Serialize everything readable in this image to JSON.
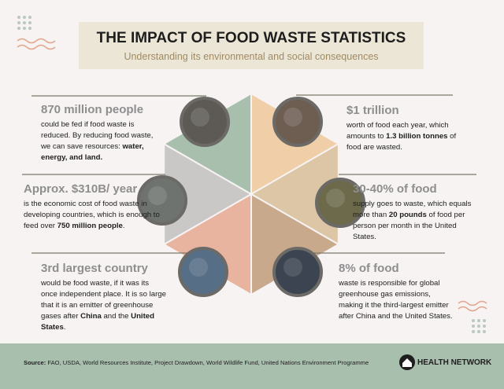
{
  "header": {
    "title": "THE IMPACT OF FOOD WASTE STATISTICS",
    "subtitle": "Understanding its environmental and social consequences"
  },
  "items": [
    {
      "headline": "870 million people",
      "body": [
        {
          "text": "could be fed if food waste is reduced. By reducing food waste, we can save resources: ",
          "bold": false
        },
        {
          "text": "water, energy, and land.",
          "bold": true
        }
      ]
    },
    {
      "headline": "$1 trillion",
      "body": [
        {
          "text": "worth of food each year, which amounts to ",
          "bold": false
        },
        {
          "text": "1.3 billion tonnes",
          "bold": true
        },
        {
          "text": " of food are wasted.",
          "bold": false
        }
      ]
    },
    {
      "headline": "Approx. $310B/ year",
      "body": [
        {
          "text": "is the economic cost of food waste in developing countries, which is enough to feed over ",
          "bold": false
        },
        {
          "text": "750 million people",
          "bold": true
        },
        {
          "text": ".",
          "bold": false
        }
      ]
    },
    {
      "headline": "30-40% of food",
      "body": [
        {
          "text": "supply goes to waste, which equals more than ",
          "bold": false
        },
        {
          "text": "20 pounds",
          "bold": true
        },
        {
          "text": " of food per person per month in the United States.",
          "bold": false
        }
      ]
    },
    {
      "headline": "3rd largest country",
      "body": [
        {
          "text": "would be food waste, if it was its once independent place. It is so large that it is an emitter of greenhouse gases after ",
          "bold": false
        },
        {
          "text": "China",
          "bold": true
        },
        {
          "text": " and the ",
          "bold": false
        },
        {
          "text": "United States",
          "bold": true
        },
        {
          "text": ".",
          "bold": false
        }
      ]
    },
    {
      "headline": "8% of food",
      "body": [
        {
          "text": "waste is responsible for global greenhouse gas emissions, making it the third-largest emitter after China and the United States.",
          "bold": false
        }
      ]
    }
  ],
  "footer": {
    "source_label": "Source:",
    "source": " FAO, USDA, World Resources Institute, Project Drawdown, World Wildlife Fund, United Nations Environment Programme",
    "brand": "HEALTH NETWORK"
  }
}
